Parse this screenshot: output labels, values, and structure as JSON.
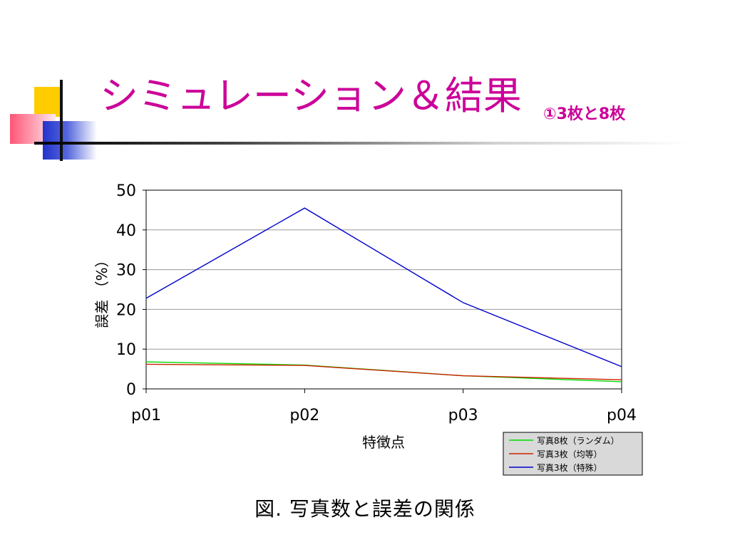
{
  "slide": {
    "title": "シミュレーション＆結果",
    "subtitle": "①3枚と8枚",
    "caption": "図.  写真数と誤差の関係"
  },
  "chart_data": {
    "type": "line",
    "categories": [
      "p01",
      "p02",
      "p03",
      "p04"
    ],
    "series": [
      {
        "name": "写真8枚（ランダム）",
        "color": "#00dd00",
        "values": [
          6.8,
          6.0,
          3.3,
          1.8
        ]
      },
      {
        "name": "写真3枚（均等）",
        "color": "#cc2200",
        "values": [
          6.2,
          5.9,
          3.3,
          2.3
        ]
      },
      {
        "name": "写真3枚（特殊）",
        "color": "#0000cc",
        "values": [
          22.8,
          45.5,
          21.7,
          5.6
        ]
      }
    ],
    "title": "",
    "xlabel": "特徴点",
    "ylabel": "誤差 （%）",
    "ylim": [
      0,
      50
    ],
    "yticks": [
      0,
      10,
      20,
      30,
      40,
      50
    ],
    "grid": true,
    "legend": "bottom-right"
  }
}
